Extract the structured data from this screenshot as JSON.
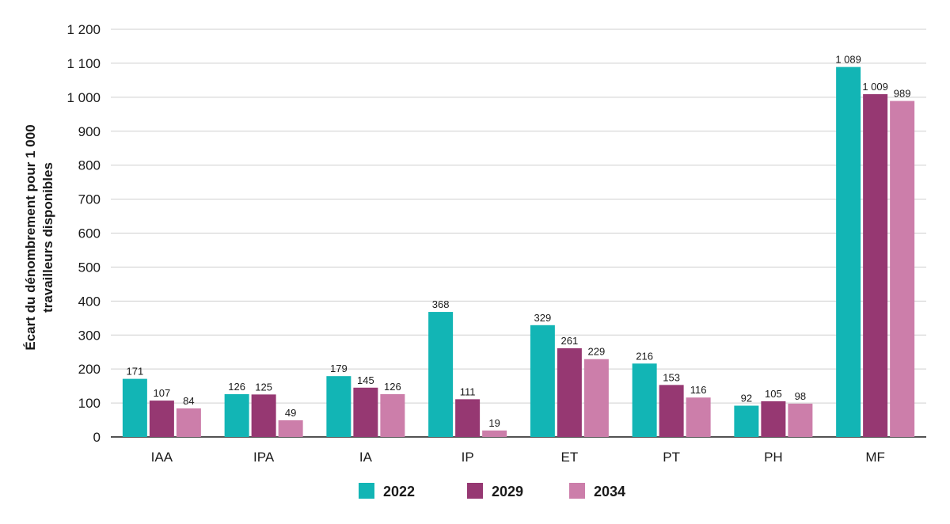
{
  "chart_data": {
    "type": "bar",
    "ylabel_lines": [
      "Écart du dénombrement pour 1 000",
      "travailleurs disponibles"
    ],
    "ylim": [
      0,
      1200
    ],
    "ytick_values": [
      0,
      100,
      200,
      300,
      400,
      500,
      600,
      700,
      800,
      900,
      1000,
      1100,
      1200
    ],
    "ytick_labels": [
      "0",
      "100",
      "200",
      "300",
      "400",
      "500",
      "600",
      "700",
      "800",
      "900",
      "1 000",
      "1 100",
      "1 200"
    ],
    "grid": true,
    "legend_position": "bottom",
    "categories": [
      "IAA",
      "IPA",
      "IA",
      "IP",
      "ET",
      "PT",
      "PH",
      "MF"
    ],
    "series": [
      {
        "name": "2022",
        "color": "#12b5b5",
        "values": [
          171,
          126,
          179,
          368,
          329,
          216,
          92,
          1089
        ],
        "labels": [
          "171",
          "126",
          "179",
          "368",
          "329",
          "216",
          "92",
          "1 089"
        ]
      },
      {
        "name": "2029",
        "color": "#963872",
        "values": [
          107,
          125,
          145,
          111,
          261,
          153,
          105,
          1009
        ],
        "labels": [
          "107",
          "125",
          "145",
          "111",
          "261",
          "153",
          "105",
          "1 009"
        ]
      },
      {
        "name": "2034",
        "color": "#cc7eaa",
        "values": [
          84,
          49,
          126,
          19,
          229,
          116,
          98,
          989
        ],
        "labels": [
          "84",
          "49",
          "126",
          "19",
          "229",
          "116",
          "98",
          "989"
        ]
      }
    ]
  }
}
